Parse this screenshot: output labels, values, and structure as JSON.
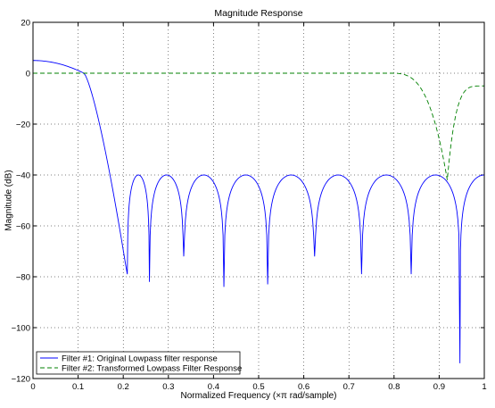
{
  "chart_data": {
    "type": "line",
    "title": "Magnitude Response",
    "xlabel": "Normalized Frequency  (×π rad/sample)",
    "ylabel": "Magnitude (dB)",
    "xlim": [
      0,
      1
    ],
    "ylim": [
      -120,
      20
    ],
    "xticks": [
      0,
      0.1,
      0.2,
      0.3,
      0.4,
      0.5,
      0.6,
      0.7,
      0.8,
      0.9,
      1
    ],
    "xtick_labels": [
      "0",
      "0.1",
      "0.2",
      "0.3",
      "0.4",
      "0.5",
      "0.6",
      "0.7",
      "0.8",
      "0.9",
      "1"
    ],
    "yticks": [
      20,
      0,
      -20,
      -40,
      -60,
      -80,
      -100,
      -120
    ],
    "ytick_labels": [
      "20",
      "0",
      "−20",
      "−40",
      "−60",
      "−80",
      "−100",
      "−120"
    ],
    "grid": true,
    "grid_style": "dotted",
    "legend_position": "bottom-left",
    "series": [
      {
        "name": "Filter #1: Original Lowpass filter response",
        "color": "#0000ff",
        "line_style": "solid",
        "passband": {
          "peak_db": 5,
          "edge": 0.205
        },
        "sidelobe_db": -40,
        "nulls": [
          {
            "x": 0.209,
            "db": -79
          },
          {
            "x": 0.258,
            "db": -82
          },
          {
            "x": 0.334,
            "db": -72
          },
          {
            "x": 0.423,
            "db": -84
          },
          {
            "x": 0.52,
            "db": -83
          },
          {
            "x": 0.624,
            "db": -72
          },
          {
            "x": 0.728,
            "db": -79
          },
          {
            "x": 0.838,
            "db": -79
          },
          {
            "x": 0.946,
            "db": -114
          }
        ],
        "end_value_db": -40
      },
      {
        "name": "Filter #2: Transformed Lowpass Filter Response",
        "color": "#008000",
        "line_style": "dashed",
        "flat_db": 0,
        "drop_start": 0.8,
        "null": {
          "x": 0.918,
          "db": -42
        },
        "end_value_db": -5
      }
    ]
  }
}
